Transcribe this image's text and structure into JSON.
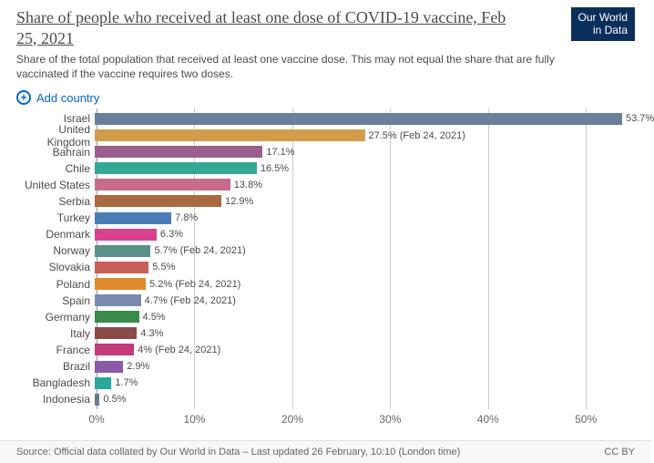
{
  "header": {
    "title": "Share of people who received at least one dose of COVID-19 vaccine, Feb 25, 2021",
    "subtitle": "Share of the total population that received at least one vaccine dose. This may not equal the share that are fully vaccinated if the vaccine requires two doses.",
    "badge_line1": "Our World",
    "badge_line2": "in Data"
  },
  "controls": {
    "add_country": "Add country"
  },
  "chart": {
    "type": "bar-horizontal",
    "xmax": 55,
    "xticks": [
      {
        "value": 0,
        "label": "0%"
      },
      {
        "value": 10,
        "label": "10%"
      },
      {
        "value": 20,
        "label": "20%"
      },
      {
        "value": 30,
        "label": "30%"
      },
      {
        "value": 40,
        "label": "40%"
      },
      {
        "value": 50,
        "label": "50%"
      }
    ],
    "grid_color": "#cccccc",
    "background_color": "#ffffff",
    "label_fontsize": 12,
    "value_fontsize": 11,
    "bars": [
      {
        "country": "Israel",
        "value": 53.7,
        "label": "53.7%",
        "color": "#6a7f9b"
      },
      {
        "country": "United Kingdom",
        "value": 27.5,
        "label": "27.5% (Feb 24, 2021)",
        "color": "#d19d4b"
      },
      {
        "country": "Bahrain",
        "value": 17.1,
        "label": "17.1%",
        "color": "#9b5e8e"
      },
      {
        "country": "Chile",
        "value": 16.5,
        "label": "16.5%",
        "color": "#35a895"
      },
      {
        "country": "United States",
        "value": 13.8,
        "label": "13.8%",
        "color": "#c76d8a"
      },
      {
        "country": "Serbia",
        "value": 12.9,
        "label": "12.9%",
        "color": "#a86a3e"
      },
      {
        "country": "Turkey",
        "value": 7.8,
        "label": "7.8%",
        "color": "#4a7db5"
      },
      {
        "country": "Denmark",
        "value": 6.3,
        "label": "6.3%",
        "color": "#d6428e"
      },
      {
        "country": "Norway",
        "value": 5.7,
        "label": "5.7% (Feb 24, 2021)",
        "color": "#5a8f8a"
      },
      {
        "country": "Slovakia",
        "value": 5.5,
        "label": "5.5%",
        "color": "#c8605a"
      },
      {
        "country": "Poland",
        "value": 5.2,
        "label": "5.2% (Feb 24, 2021)",
        "color": "#e08a2e"
      },
      {
        "country": "Spain",
        "value": 4.7,
        "label": "4.7% (Feb 24, 2021)",
        "color": "#7a8bb0"
      },
      {
        "country": "Germany",
        "value": 4.5,
        "label": "4.5%",
        "color": "#3a8a4a"
      },
      {
        "country": "Italy",
        "value": 4.3,
        "label": "4.3%",
        "color": "#8a4a4a"
      },
      {
        "country": "France",
        "value": 4.0,
        "label": "4% (Feb 24, 2021)",
        "color": "#c43a7a"
      },
      {
        "country": "Brazil",
        "value": 2.9,
        "label": "2.9%",
        "color": "#8a5aa8"
      },
      {
        "country": "Bangladesh",
        "value": 1.7,
        "label": "1.7%",
        "color": "#2aa89a"
      },
      {
        "country": "Indonesia",
        "value": 0.5,
        "label": "0.5%",
        "color": "#6a7a8a"
      }
    ]
  },
  "footer": {
    "source": "Source: Official data collated by Our World in Data – Last updated 26 February, 10:10 (London time)",
    "license": "CC BY"
  }
}
